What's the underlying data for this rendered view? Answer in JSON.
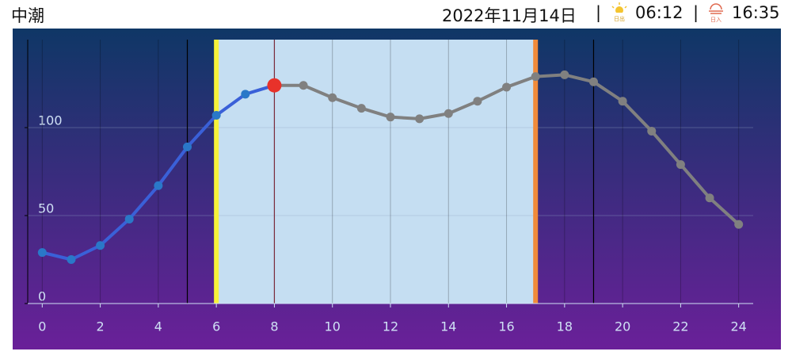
{
  "header": {
    "tide_name": "中潮",
    "date": "2022年11月14日",
    "separator": "|",
    "sunrise_icon_label": "日出",
    "sunrise": "06:12",
    "sunset_icon_label": "日入",
    "sunset": "16:35"
  },
  "chart_data": {
    "type": "line",
    "x": [
      0,
      1,
      2,
      3,
      4,
      5,
      6,
      7,
      8,
      9,
      10,
      11,
      12,
      13,
      14,
      15,
      16,
      17,
      18,
      19,
      20,
      21,
      22,
      23,
      24
    ],
    "series": [
      {
        "values": [
          29,
          25,
          33,
          48,
          67,
          89,
          107,
          119,
          124,
          124,
          117,
          111,
          106,
          105,
          108,
          115,
          123,
          129,
          130,
          126,
          115,
          98,
          79,
          60,
          45
        ],
        "color": "#3a60d8",
        "future_color": "#808080"
      }
    ],
    "current_x": 8,
    "current_color": "#e8322a",
    "day_range": [
      6,
      17
    ],
    "day_color": "#c5def2",
    "sunrise_color": "#f7f23a",
    "sunset_color": "#f08a3a",
    "night_lines": [
      5,
      19
    ],
    "xlim": [
      -0.5,
      24.5
    ],
    "ylim": [
      0,
      150
    ],
    "xticks": [
      0,
      2,
      4,
      6,
      8,
      10,
      12,
      14,
      16,
      18,
      20,
      22,
      24
    ],
    "yticks": [
      0,
      50,
      100
    ],
    "grid": true
  }
}
